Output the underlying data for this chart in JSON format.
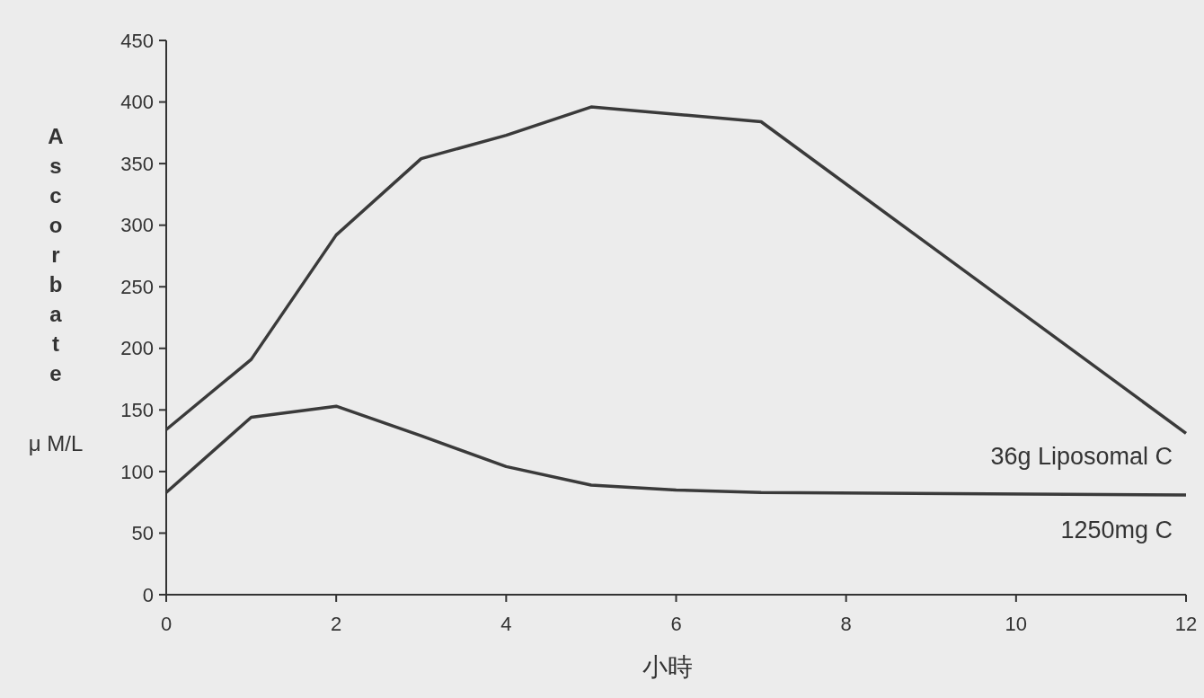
{
  "chart_data": {
    "type": "line",
    "xlabel": "小時",
    "ylabel": "Ascorbate",
    "annotations": [
      "μ M/L"
    ],
    "x": [
      0,
      1,
      2,
      3,
      4,
      5,
      7,
      12
    ],
    "series": [
      {
        "name": "36g Liposomal C",
        "color": "#3a3a3a",
        "values": [
          134,
          191,
          292,
          354,
          373,
          396,
          384,
          131
        ]
      },
      {
        "name": "1250mg C",
        "color": "#3a3a3a",
        "x": [
          0,
          1,
          2,
          3,
          4,
          5,
          6,
          7,
          12
        ],
        "values": [
          83,
          144,
          153,
          129,
          104,
          89,
          85,
          83,
          81
        ]
      }
    ],
    "xlim": [
      0,
      12
    ],
    "xticks": [
      0,
      2,
      4,
      6,
      8,
      10,
      12
    ],
    "ylim": [
      0,
      450
    ],
    "yticks": [
      0,
      50,
      100,
      150,
      200,
      250,
      300,
      350,
      400,
      450
    ],
    "grid": false,
    "legend": false,
    "marker": "none",
    "line_style": "solid"
  }
}
